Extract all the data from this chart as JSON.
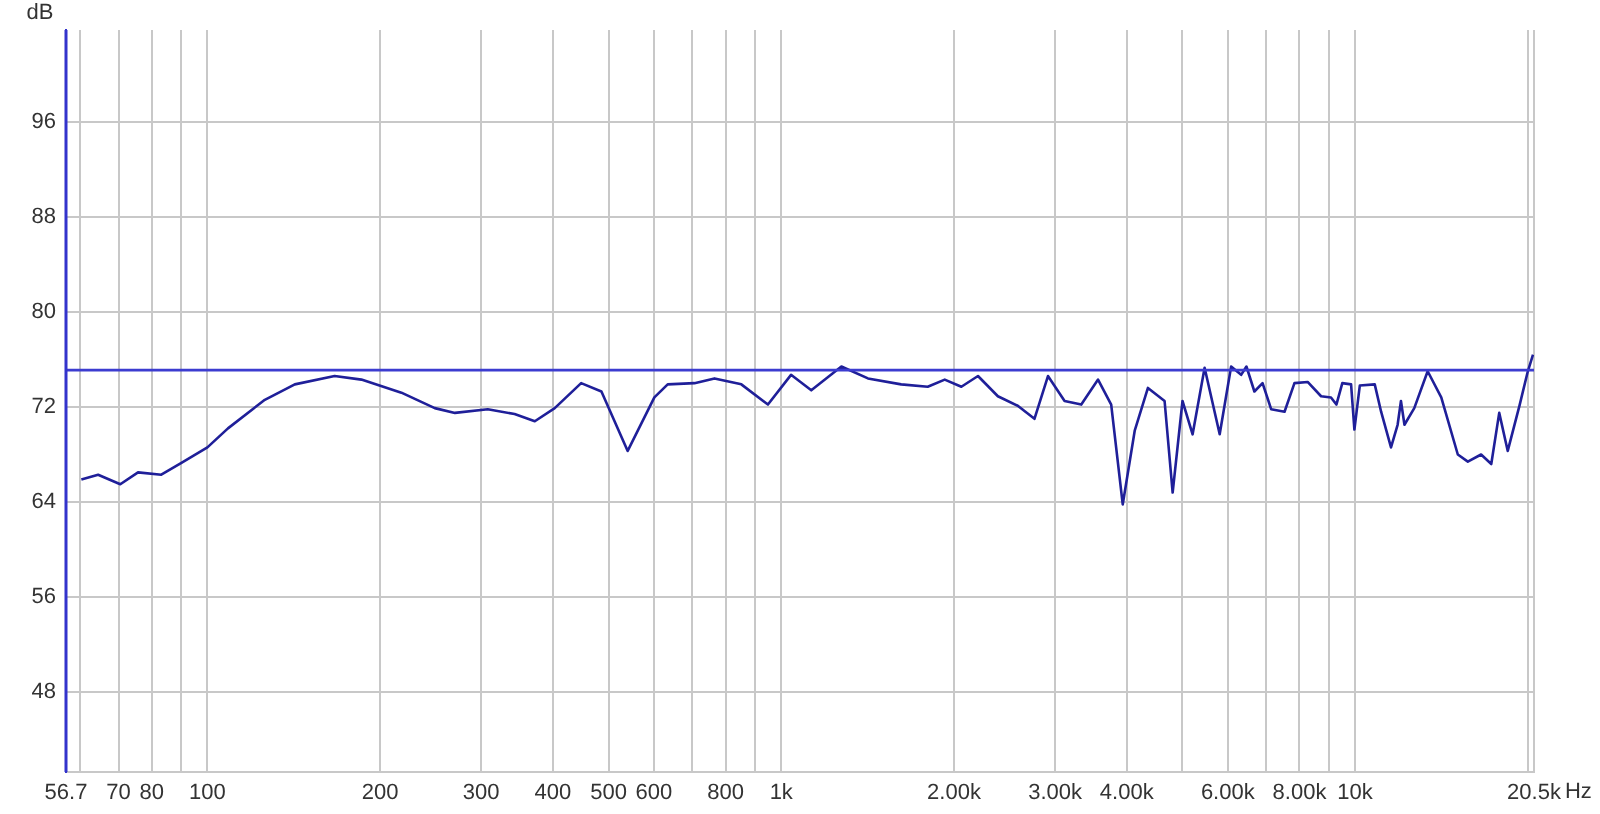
{
  "chart_data": {
    "type": "line",
    "ylabel": "dB",
    "x": [
      60.3,
      64.5,
      70.5,
      75.7,
      83.1,
      90.1,
      100,
      108.6,
      125.9,
      142,
      166.6,
      185.5,
      217.8,
      249,
      270,
      308,
      343,
      372,
      403,
      448,
      486,
      540,
      601,
      634,
      706,
      765,
      852,
      948,
      1040,
      1128,
      1273,
      1416,
      1618,
      1800,
      1927,
      2060,
      2202,
      2385,
      2583,
      2762,
      2916,
      3117,
      3333,
      3565,
      3758,
      3936,
      4130,
      4355,
      4656,
      4809,
      5003,
      5210,
      5467,
      5808,
      6081,
      6330,
      6466,
      6676,
      6898,
      7142,
      7534,
      7840,
      8266,
      8724,
      9078,
      9277,
      9500,
      9840,
      9972,
      10190,
      10820,
      11100,
      11550,
      11860,
      12020,
      12190,
      12680,
      13380,
      14130,
      15100,
      15720,
      16580,
      17270,
      17830,
      18450,
      19360,
      20000,
      20420
    ],
    "series": [
      {
        "color": "#1f1f99",
        "values": [
          65.9,
          66.3,
          65.5,
          66.5,
          66.3,
          67.3,
          68.6,
          70.2,
          72.6,
          73.9,
          74.6,
          74.3,
          73.2,
          71.9,
          71.5,
          71.8,
          71.4,
          70.8,
          71.9,
          74.0,
          73.3,
          68.3,
          72.8,
          73.9,
          74.0,
          74.4,
          73.9,
          72.2,
          74.7,
          73.4,
          75.4,
          74.4,
          73.9,
          73.7,
          74.3,
          73.7,
          74.6,
          72.9,
          72.1,
          71.0,
          74.6,
          72.5,
          72.2,
          74.3,
          72.2,
          63.8,
          70.0,
          73.6,
          72.5,
          64.8,
          72.5,
          69.7,
          75.3,
          69.7,
          75.4,
          74.7,
          75.4,
          73.3,
          74.0,
          71.8,
          71.6,
          74.0,
          74.1,
          72.9,
          72.8,
          72.2,
          74.0,
          73.9,
          70.1,
          73.8,
          73.9,
          71.6,
          68.6,
          70.5,
          72.5,
          70.5,
          71.9,
          75.0,
          72.8,
          68.0,
          67.4,
          68.0,
          67.2,
          71.5,
          68.3,
          72.2,
          75.0,
          76.4
        ]
      }
    ],
    "log": "x",
    "xlim": [
      56.7,
      20500
    ],
    "xticks": [
      56.7,
      {
        "value": 60,
        "label": null
      },
      70,
      80,
      {
        "value": 90,
        "label": null
      },
      100,
      200,
      300,
      400,
      500,
      600,
      {
        "value": 700,
        "label": null
      },
      800,
      {
        "value": 900,
        "label": null
      },
      {
        "value": 1000,
        "label": "1k"
      },
      {
        "value": 2000,
        "label": "2.00k"
      },
      {
        "value": 3000,
        "label": "3.00k"
      },
      {
        "value": 4000,
        "label": "4.00k"
      },
      {
        "value": 5000,
        "label": null
      },
      {
        "value": 6000,
        "label": "6.00k"
      },
      {
        "value": 7000,
        "label": null
      },
      {
        "value": 8000,
        "label": "8.00k"
      },
      {
        "value": 9000,
        "label": null
      },
      {
        "value": 10000,
        "label": "10k"
      },
      {
        "value": 20000,
        "label": null
      },
      {
        "value": 20500,
        "label": "20.5k"
      }
    ],
    "xlabel": "Hz",
    "ylim": [
      41.3,
      103.7
    ],
    "yticks": [
      48,
      56,
      64,
      72,
      80,
      88,
      96
    ],
    "ref_lines": [
      {
        "axis": "y",
        "value": 75.1,
        "color": "#3c3cd0"
      }
    ],
    "grid": true
  }
}
